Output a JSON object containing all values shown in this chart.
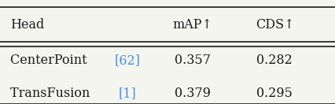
{
  "col_headers": [
    "Head",
    "mAP↑",
    "CDS↑"
  ],
  "rows": [
    [
      [
        "CenterPoint ",
        "#1a1a1a"
      ],
      [
        "[62]",
        "#4a90d9"
      ],
      [
        "0.357",
        "#1a1a1a"
      ],
      [
        "0.282",
        "#1a1a1a"
      ]
    ],
    [
      [
        "TransFusion ",
        "#1a1a1a"
      ],
      [
        "[1]",
        "#4a90d9"
      ],
      [
        "0.379",
        "#1a1a1a"
      ],
      [
        "0.295",
        "#1a1a1a"
      ]
    ]
  ],
  "text_color": "#1a1a1a",
  "bg_color": "#f5f5f0",
  "fontsize": 11.5,
  "figsize": [
    4.26,
    1.32
  ],
  "dpi": 100
}
